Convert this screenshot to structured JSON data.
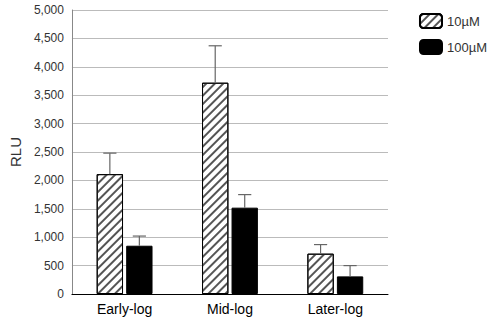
{
  "chart_data": {
    "type": "bar",
    "y_label": "RLU",
    "categories": [
      "Early-log",
      "Mid-log",
      "Later-log"
    ],
    "series": [
      {
        "name": "10µM",
        "color": "#ffffff",
        "values": [
          2110,
          3720,
          710
        ],
        "errors": [
          370,
          650,
          160
        ]
      },
      {
        "name": "100µM",
        "color": "#000000",
        "values": [
          850,
          1520,
          310
        ],
        "errors": [
          170,
          230,
          190
        ]
      }
    ],
    "ylim": [
      0,
      5000
    ],
    "yticks": [
      0,
      500,
      1000,
      1500,
      2000,
      2500,
      3000,
      3500,
      4000,
      4500,
      5000
    ],
    "grid": true,
    "legend": "right"
  }
}
